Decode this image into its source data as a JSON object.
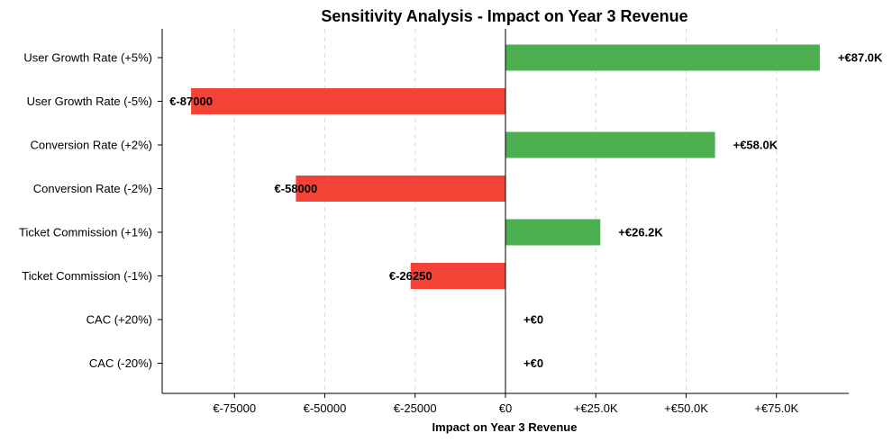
{
  "chart_data": {
    "type": "bar",
    "orientation": "horizontal",
    "title": "Sensitivity Analysis - Impact on Year 3 Revenue",
    "xlabel": "Impact on Year 3 Revenue",
    "ylabel": "",
    "xlim": [
      -95000,
      95000
    ],
    "grid": "vertical dashed",
    "categories": [
      "User Growth Rate (+5%)",
      "User Growth Rate (-5%)",
      "Conversion Rate (+2%)",
      "Conversion Rate (-2%)",
      "Ticket Commission (+1%)",
      "Ticket Commission (-1%)",
      "CAC (+20%)",
      "CAC (-20%)"
    ],
    "values": [
      87000,
      -87000,
      58000,
      -58000,
      26250,
      -26250,
      0,
      0
    ],
    "data_labels": [
      "+€87.0K",
      "€-87000",
      "+€58.0K",
      "€-58000",
      "+€26.2K",
      "€-26250",
      "+€0",
      "+€0"
    ],
    "x_ticks": [
      {
        "value": -75000,
        "label": "€-75000"
      },
      {
        "value": -50000,
        "label": "€-50000"
      },
      {
        "value": -25000,
        "label": "€-25000"
      },
      {
        "value": 0,
        "label": "€0"
      },
      {
        "value": 25000,
        "label": "+€25.0K"
      },
      {
        "value": 50000,
        "label": "+€50.0K"
      },
      {
        "value": 75000,
        "label": "+€75.0K"
      }
    ],
    "colors": {
      "positive": "#4caf50",
      "negative": "#f44336"
    }
  }
}
